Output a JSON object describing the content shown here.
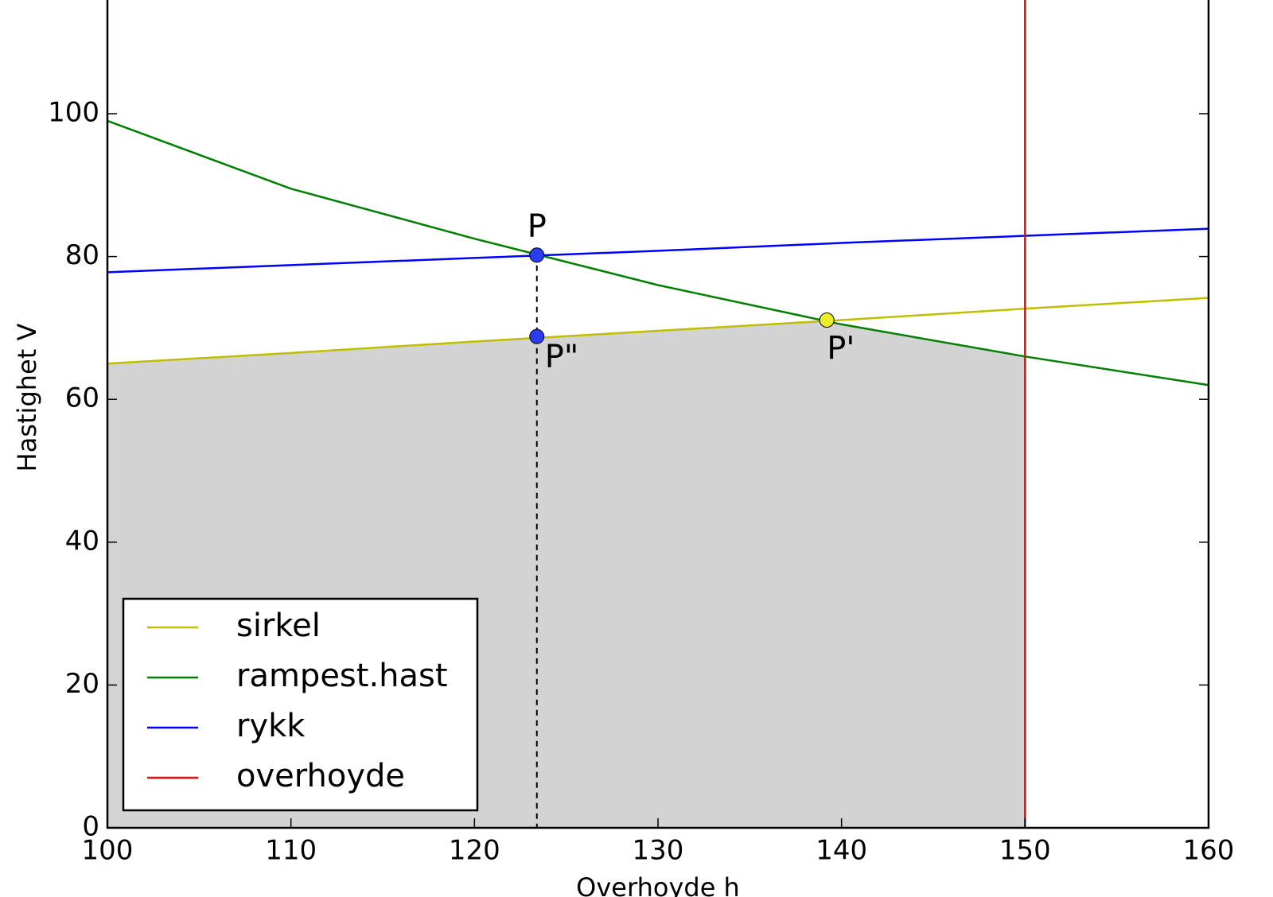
{
  "chart_data": {
    "type": "line",
    "xlabel": "Overhoyde h",
    "ylabel": "Hastighet V",
    "x": [
      100,
      110,
      120,
      130,
      140,
      150,
      160
    ],
    "series": [
      {
        "name": "sirkel",
        "color": "#bfbf00",
        "values": [
          65,
          66.5,
          68.1,
          69.6,
          71.1,
          72.7,
          74.2
        ]
      },
      {
        "name": "rampest.hast",
        "color": "#007f00",
        "values": [
          99,
          89.5,
          82.5,
          76,
          70.5,
          66,
          62
        ]
      },
      {
        "name": "rykk",
        "color": "#0000ff",
        "values": [
          77.8,
          78.8,
          79.8,
          80.8,
          81.9,
          82.9,
          83.9
        ]
      },
      {
        "name": "overhoyde",
        "color": "#ff0000",
        "x": [
          150,
          150
        ],
        "values": [
          0,
          120
        ]
      }
    ],
    "points": [
      {
        "label": "P",
        "x": 123.4,
        "y": 80.2,
        "color": "#2a3cf0"
      },
      {
        "label": "P\"",
        "x": 123.4,
        "y": 68.8,
        "color": "#2a3cf0"
      },
      {
        "label": "P'",
        "x": 139.2,
        "y": 71.1,
        "color": "#ecec2a"
      }
    ],
    "xlim": [
      100,
      160
    ],
    "ylim": [
      0,
      120
    ],
    "xticks": [
      100,
      110,
      120,
      130,
      140,
      150,
      160
    ],
    "yticks": [
      0,
      20,
      40,
      60,
      80,
      100
    ],
    "legend": "lower left",
    "fill_color": "#d3d3d3"
  }
}
